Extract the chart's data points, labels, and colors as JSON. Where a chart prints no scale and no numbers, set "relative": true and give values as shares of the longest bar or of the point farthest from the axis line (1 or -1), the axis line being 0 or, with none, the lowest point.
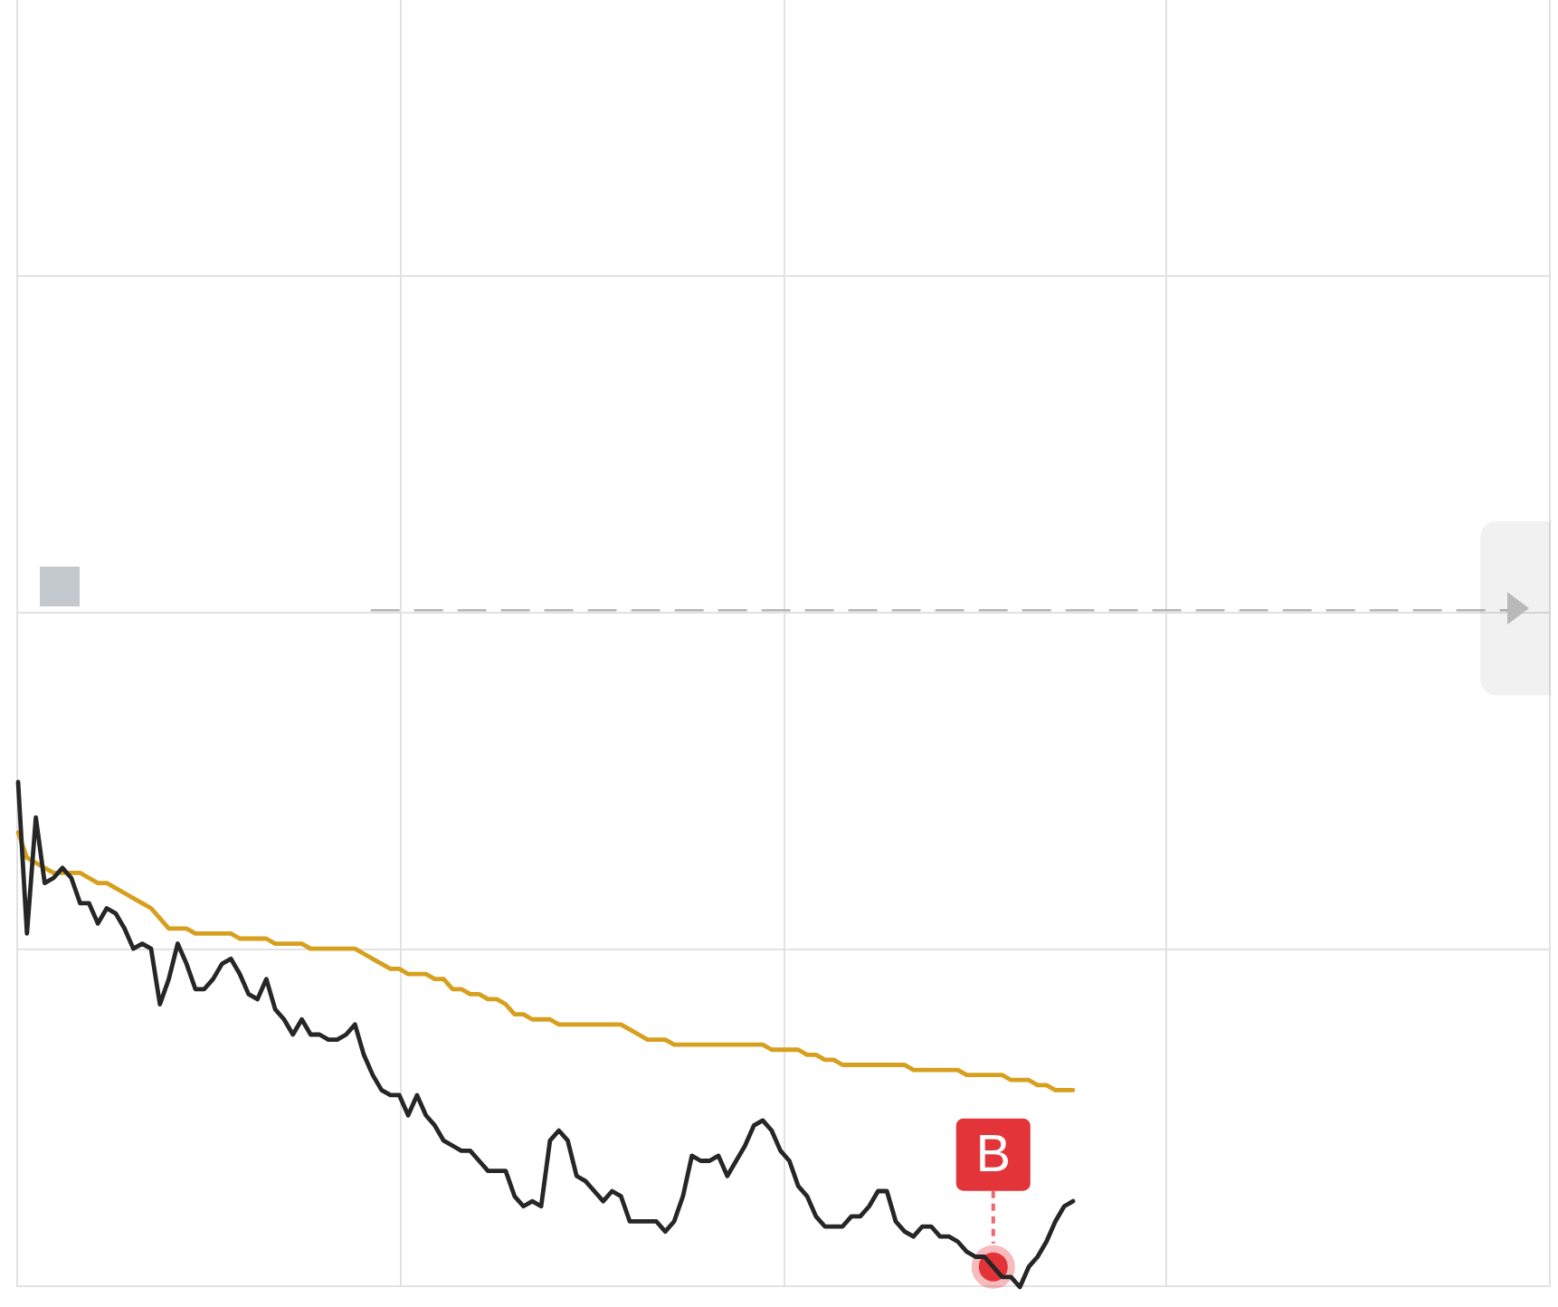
{
  "chart_data": {
    "type": "line",
    "relative": true,
    "grid": true,
    "categories": [
      null,
      null,
      null,
      null,
      null,
      null,
      null,
      null,
      null,
      null,
      null,
      null,
      null,
      null,
      null,
      null,
      null,
      null,
      null,
      null,
      null,
      null,
      null,
      null,
      null,
      null,
      null,
      null,
      null,
      null,
      null,
      null,
      null,
      null,
      null,
      null,
      null,
      null,
      null,
      null,
      null,
      null,
      null,
      null,
      null,
      null,
      null,
      null,
      null,
      null,
      null,
      null,
      null,
      null,
      null,
      null,
      null,
      null,
      null,
      null,
      null,
      null,
      null,
      null,
      null,
      null,
      null,
      null,
      null,
      null,
      null,
      null,
      null,
      null,
      null,
      null,
      null,
      null,
      null,
      null,
      null,
      null,
      null,
      null,
      null,
      null,
      null,
      null,
      null,
      null,
      null,
      null,
      null,
      null,
      null,
      null,
      null,
      null,
      null,
      null,
      null,
      null,
      null,
      null,
      null,
      null,
      null,
      null,
      null,
      null,
      null,
      null,
      null,
      null,
      null,
      null,
      null,
      null,
      null,
      null
    ],
    "series": [
      {
        "color": "#d6a01e",
        "values": [
          0.9,
          0.85,
          0.84,
          0.83,
          0.82,
          0.82,
          0.82,
          0.82,
          0.81,
          0.8,
          0.8,
          0.79,
          0.78,
          0.77,
          0.76,
          0.75,
          0.73,
          0.71,
          0.71,
          0.71,
          0.7,
          0.7,
          0.7,
          0.7,
          0.7,
          0.69,
          0.69,
          0.69,
          0.69,
          0.68,
          0.68,
          0.68,
          0.68,
          0.67,
          0.67,
          0.67,
          0.67,
          0.67,
          0.67,
          0.66,
          0.65,
          0.64,
          0.63,
          0.63,
          0.62,
          0.62,
          0.62,
          0.61,
          0.61,
          0.59,
          0.59,
          0.58,
          0.58,
          0.57,
          0.57,
          0.56,
          0.54,
          0.54,
          0.53,
          0.53,
          0.53,
          0.52,
          0.52,
          0.52,
          0.52,
          0.52,
          0.52,
          0.52,
          0.52,
          0.51,
          0.5,
          0.49,
          0.49,
          0.49,
          0.48,
          0.48,
          0.48,
          0.48,
          0.48,
          0.48,
          0.48,
          0.48,
          0.48,
          0.48,
          0.48,
          0.47,
          0.47,
          0.47,
          0.47,
          0.46,
          0.46,
          0.45,
          0.45,
          0.44,
          0.44,
          0.44,
          0.44,
          0.44,
          0.44,
          0.44,
          0.44,
          0.43,
          0.43,
          0.43,
          0.43,
          0.43,
          0.43,
          0.42,
          0.42,
          0.42,
          0.42,
          0.42,
          0.41,
          0.41,
          0.41,
          0.4,
          0.4,
          0.39,
          0.39,
          0.39
        ]
      },
      {
        "color": "#262626",
        "values": [
          1.0,
          0.7,
          0.93,
          0.8,
          0.81,
          0.83,
          0.81,
          0.76,
          0.76,
          0.72,
          0.75,
          0.74,
          0.71,
          0.67,
          0.68,
          0.67,
          0.56,
          0.61,
          0.68,
          0.64,
          0.59,
          0.59,
          0.61,
          0.64,
          0.65,
          0.62,
          0.58,
          0.57,
          0.61,
          0.55,
          0.53,
          0.5,
          0.53,
          0.5,
          0.5,
          0.49,
          0.49,
          0.5,
          0.52,
          0.46,
          0.42,
          0.39,
          0.38,
          0.38,
          0.34,
          0.38,
          0.34,
          0.32,
          0.29,
          0.28,
          0.27,
          0.27,
          0.25,
          0.23,
          0.23,
          0.23,
          0.18,
          0.16,
          0.17,
          0.16,
          0.29,
          0.31,
          0.29,
          0.22,
          0.21,
          0.19,
          0.17,
          0.19,
          0.18,
          0.13,
          0.13,
          0.13,
          0.13,
          0.11,
          0.13,
          0.18,
          0.26,
          0.25,
          0.25,
          0.26,
          0.22,
          0.25,
          0.28,
          0.32,
          0.33,
          0.31,
          0.27,
          0.25,
          0.2,
          0.18,
          0.14,
          0.12,
          0.12,
          0.12,
          0.14,
          0.14,
          0.16,
          0.19,
          0.19,
          0.13,
          0.11,
          0.1,
          0.12,
          0.12,
          0.1,
          0.1,
          0.09,
          0.07,
          0.06,
          0.06,
          0.04,
          0.02,
          0.02,
          0.0,
          0.04,
          0.06,
          0.09,
          0.13,
          0.16,
          0.17
        ]
      },
      {
        "color": "#e3343a",
        "marker": "circle",
        "values": [
          null,
          null,
          null,
          null,
          null,
          null,
          null,
          null,
          null,
          null,
          null,
          null,
          null,
          null,
          null,
          null,
          null,
          null,
          null,
          null,
          null,
          null,
          null,
          null,
          null,
          null,
          null,
          null,
          null,
          null,
          null,
          null,
          null,
          null,
          null,
          null,
          null,
          null,
          null,
          null,
          null,
          null,
          null,
          null,
          null,
          null,
          null,
          null,
          null,
          null,
          null,
          null,
          null,
          null,
          null,
          null,
          null,
          null,
          null,
          null,
          null,
          null,
          null,
          null,
          null,
          null,
          null,
          null,
          null,
          null,
          null,
          null,
          null,
          null,
          null,
          null,
          null,
          null,
          null,
          null,
          null,
          null,
          null,
          null,
          null,
          null,
          null,
          null,
          null,
          null,
          null,
          null,
          null,
          null,
          null,
          null,
          null,
          null,
          null,
          null,
          null,
          null,
          null,
          null,
          null,
          null,
          null,
          null,
          null,
          null,
          0.04,
          null,
          null,
          null,
          null,
          null,
          null,
          null,
          null,
          null
        ]
      }
    ],
    "ref_lines": [
      {
        "axis": "y",
        "value": 1.34,
        "color": "#b4b4b4",
        "line_style": "dashed"
      }
    ],
    "annotations": [
      {
        "text": "B",
        "y": 0.04
      }
    ]
  }
}
